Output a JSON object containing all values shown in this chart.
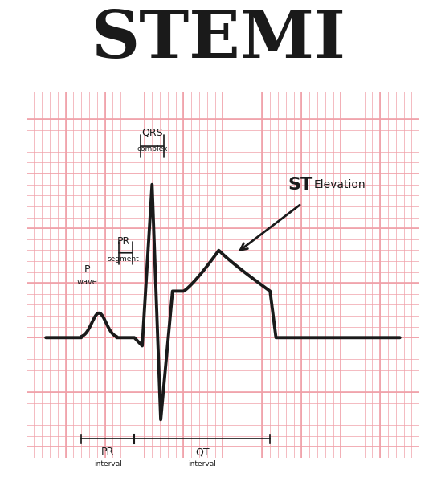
{
  "title": "STEMI",
  "title_fontsize": 60,
  "background_color": "#ffffff",
  "grid_color": "#f0a0a8",
  "ecg_color": "#1a1a1a",
  "ecg_linewidth": 2.8,
  "annotation_color": "#1a1a1a",
  "labels": {
    "P_wave": "P\nwave",
    "PR_segment": "PR\nsegment",
    "QRS_complex": "QRS\ncomplex",
    "ST_elevation": "ST",
    "ST_elevation2": "Elevation",
    "PR_interval": "PR\ninterval",
    "QT_interval": "QT\ninterval"
  }
}
